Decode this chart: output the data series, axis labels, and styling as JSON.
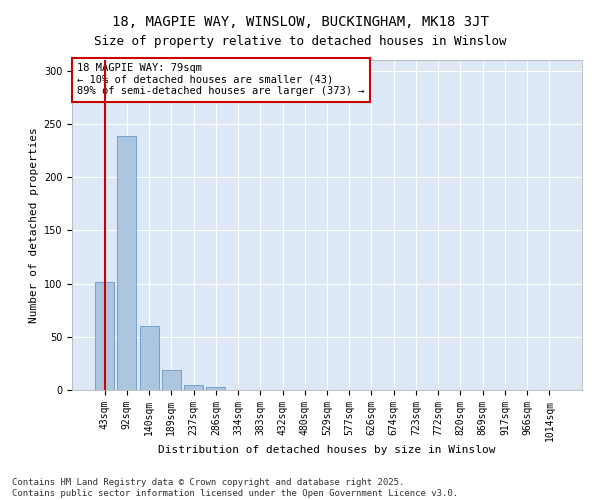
{
  "title": "18, MAGPIE WAY, WINSLOW, BUCKINGHAM, MK18 3JT",
  "subtitle": "Size of property relative to detached houses in Winslow",
  "xlabel": "Distribution of detached houses by size in Winslow",
  "ylabel": "Number of detached properties",
  "bar_labels": [
    "43sqm",
    "92sqm",
    "140sqm",
    "189sqm",
    "237sqm",
    "286sqm",
    "334sqm",
    "383sqm",
    "432sqm",
    "480sqm",
    "529sqm",
    "577sqm",
    "626sqm",
    "674sqm",
    "723sqm",
    "772sqm",
    "820sqm",
    "869sqm",
    "917sqm",
    "966sqm",
    "1014sqm"
  ],
  "bar_values": [
    101,
    239,
    60,
    19,
    5,
    3,
    0,
    0,
    0,
    0,
    0,
    0,
    0,
    0,
    0,
    0,
    0,
    0,
    0,
    0,
    0
  ],
  "bar_color": "#adc6e0",
  "bar_edge_color": "#6699cc",
  "vline_color": "#cc0000",
  "vline_pos": 0.5,
  "annotation_text": "18 MAGPIE WAY: 79sqm\n← 10% of detached houses are smaller (43)\n89% of semi-detached houses are larger (373) →",
  "annotation_box_facecolor": "#ffffff",
  "annotation_box_edgecolor": "#cc0000",
  "ylim": [
    0,
    310
  ],
  "yticks": [
    0,
    50,
    100,
    150,
    200,
    250,
    300
  ],
  "fig_facecolor": "#ffffff",
  "plot_facecolor": "#dce8f5",
  "grid_color": "#ffffff",
  "footer": "Contains HM Land Registry data © Crown copyright and database right 2025.\nContains public sector information licensed under the Open Government Licence v3.0.",
  "title_fontsize": 10,
  "subtitle_fontsize": 9,
  "axis_label_fontsize": 8,
  "tick_fontsize": 7,
  "annotation_fontsize": 7.5,
  "footer_fontsize": 6.5
}
